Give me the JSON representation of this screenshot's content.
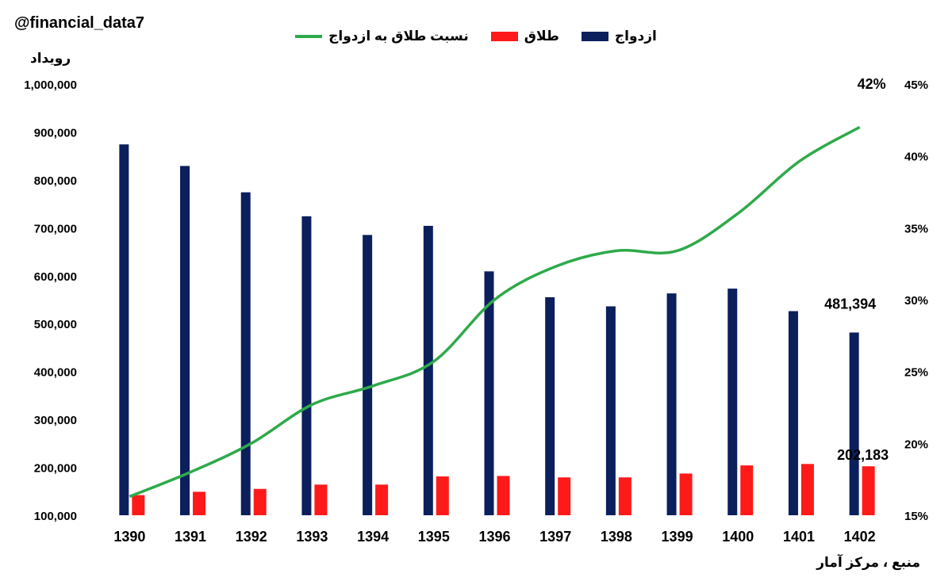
{
  "watermark": "@financial_data7",
  "y_axis_unit": "رویداد",
  "source": "منبع ، مرکز آمار",
  "colors": {
    "marriage": "#0b1f5c",
    "divorce": "#ff1a1a",
    "ratio": "#2eaa4a"
  },
  "legend": [
    {
      "label": "ازدواج",
      "kind": "rect",
      "color_key": "marriage"
    },
    {
      "label": "طلاق",
      "kind": "rect",
      "color_key": "divorce"
    },
    {
      "label": "نسبت طلاق به ازدواج",
      "kind": "line",
      "color_key": "ratio"
    }
  ],
  "chart_data": {
    "type": "bar",
    "categories": [
      "1390",
      "1391",
      "1392",
      "1393",
      "1394",
      "1395",
      "1396",
      "1397",
      "1398",
      "1399",
      "1400",
      "1401",
      "1402"
    ],
    "series": [
      {
        "name": "ازدواج",
        "axis": "left",
        "values": [
          874000,
          829000,
          774000,
          724000,
          685000,
          704000,
          609000,
          555000,
          536000,
          563000,
          573000,
          526000,
          481394
        ]
      },
      {
        "name": "طلاق",
        "axis": "left",
        "values": [
          142000,
          149000,
          155000,
          164000,
          164000,
          181000,
          182000,
          179000,
          179000,
          187000,
          204000,
          207000,
          202183
        ]
      },
      {
        "name": "نسبت طلاق به ازدواج",
        "type": "line",
        "axis": "right",
        "values": [
          0.163,
          0.18,
          0.2,
          0.227,
          0.24,
          0.257,
          0.3,
          0.323,
          0.334,
          0.334,
          0.36,
          0.396,
          0.42
        ]
      }
    ],
    "ylim_left": [
      100000,
      1000000
    ],
    "yticks_left": [
      "1,000,000",
      "900,000",
      "800,000",
      "700,000",
      "600,000",
      "500,000",
      "400,000",
      "300,000",
      "200,000",
      "100,000"
    ],
    "ylim_right": [
      0.15,
      0.45
    ],
    "yticks_right": [
      "45%",
      "40%",
      "35%",
      "30%",
      "25%",
      "20%",
      "15%"
    ],
    "annotations": [
      {
        "text": "481,394",
        "category": "1402",
        "series": "ازدواج"
      },
      {
        "text": "202,183",
        "category": "1402",
        "series": "طلاق"
      },
      {
        "text": "42%",
        "category": "1402",
        "series": "نسبت طلاق به ازدواج"
      }
    ],
    "grid": false,
    "legend_position": "top"
  }
}
